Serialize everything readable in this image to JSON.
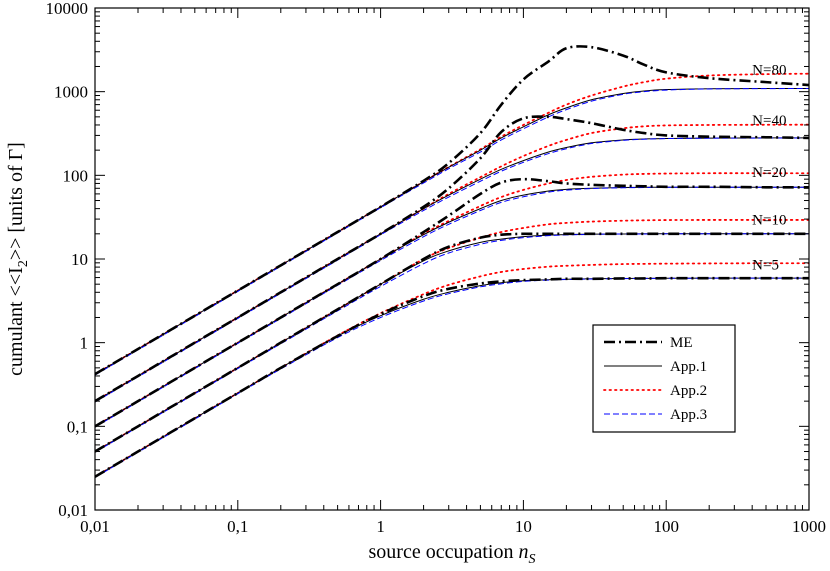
{
  "chart_data": {
    "type": "line",
    "x_scale": "log",
    "y_scale": "log",
    "xlim": [
      0.01,
      1000
    ],
    "ylim": [
      0.01,
      10000
    ],
    "grid": false,
    "xlabel": "source occupation n_S",
    "xlabel_main": "source occupation ",
    "xlabel_var": "n",
    "xlabel_sub": "S",
    "ylabel": "cumulant <<I_2>> [units of Γ]",
    "ylabel_pre": "cumulant  <<I",
    "ylabel_sub": "2",
    "ylabel_post": ">> [units of Γ]",
    "x_ticks": [
      {
        "value": 0.01,
        "label": "0,01"
      },
      {
        "value": 0.1,
        "label": "0,1"
      },
      {
        "value": 1,
        "label": "1"
      },
      {
        "value": 10,
        "label": "10"
      },
      {
        "value": 100,
        "label": "100"
      },
      {
        "value": 1000,
        "label": "1000"
      }
    ],
    "y_ticks": [
      {
        "value": 0.01,
        "label": "0,01"
      },
      {
        "value": 0.1,
        "label": "0,1"
      },
      {
        "value": 1,
        "label": "1"
      },
      {
        "value": 10,
        "label": "10"
      },
      {
        "value": 100,
        "label": "100"
      },
      {
        "value": 1000,
        "label": "1000"
      },
      {
        "value": 10000,
        "label": "10000"
      }
    ],
    "annotations": [
      {
        "text": "N=80",
        "x": 400,
        "y": 1600
      },
      {
        "text": "N=40",
        "x": 400,
        "y": 400
      },
      {
        "text": "N=20",
        "x": 400,
        "y": 95
      },
      {
        "text": "N=10",
        "x": 400,
        "y": 26
      },
      {
        "text": "N=5",
        "x": 400,
        "y": 7.5
      }
    ],
    "legend": {
      "placement": "lower-right",
      "entries": [
        {
          "label": "ME",
          "style": "dashdot",
          "color": "#000000"
        },
        {
          "label": "App.1",
          "style": "solid",
          "color": "#000000"
        },
        {
          "label": "App.2",
          "style": "dotted",
          "color": "#ff0000"
        },
        {
          "label": "App.3",
          "style": "dashed",
          "color": "#0000ff"
        }
      ]
    },
    "x": [
      0.01,
      0.02,
      0.05,
      0.1,
      0.2,
      0.5,
      1,
      2,
      3,
      5,
      7,
      10,
      15,
      20,
      30,
      50,
      70,
      100,
      200,
      500,
      1000
    ],
    "series": [
      {
        "name": "ME",
        "N": 80,
        "values": [
          0.42,
          0.84,
          2.1,
          4.2,
          8.4,
          21,
          42,
          86,
          140,
          320,
          700,
          1400,
          2300,
          3300,
          3400,
          2700,
          2100,
          1700,
          1450,
          1300,
          1200
        ]
      },
      {
        "name": "App.1",
        "N": 80,
        "values": [
          0.42,
          0.84,
          2.1,
          4.2,
          8.4,
          21,
          42,
          84,
          125,
          200,
          280,
          380,
          530,
          640,
          800,
          950,
          1020,
          1060,
          1085,
          1090,
          1090
        ]
      },
      {
        "name": "App.2",
        "N": 80,
        "values": [
          0.42,
          0.84,
          2.1,
          4.2,
          8.4,
          21,
          42,
          84,
          126,
          205,
          290,
          400,
          560,
          700,
          900,
          1150,
          1300,
          1430,
          1560,
          1620,
          1640
        ]
      },
      {
        "name": "App.3",
        "N": 80,
        "values": [
          0.41,
          0.82,
          2.05,
          4.1,
          8.2,
          20.5,
          41,
          81,
          120,
          190,
          265,
          360,
          500,
          610,
          770,
          930,
          1000,
          1045,
          1078,
          1088,
          1090
        ]
      },
      {
        "name": "ME",
        "N": 40,
        "values": [
          0.2,
          0.4,
          1.0,
          2.0,
          4.0,
          10,
          20,
          42,
          70,
          160,
          330,
          480,
          500,
          470,
          420,
          350,
          320,
          300,
          290,
          285,
          280
        ]
      },
      {
        "name": "App.1",
        "N": 40,
        "values": [
          0.2,
          0.4,
          1.0,
          2.0,
          4.0,
          10,
          20,
          40,
          58,
          90,
          118,
          150,
          190,
          215,
          245,
          265,
          272,
          276,
          278,
          280,
          280
        ]
      },
      {
        "name": "App.2",
        "N": 40,
        "values": [
          0.2,
          0.4,
          1.0,
          2.0,
          4.0,
          10,
          20,
          40,
          60,
          95,
          128,
          170,
          225,
          265,
          320,
          365,
          385,
          395,
          400,
          402,
          403
        ]
      },
      {
        "name": "App.3",
        "N": 40,
        "values": [
          0.195,
          0.39,
          0.975,
          1.95,
          3.9,
          9.7,
          19.5,
          38,
          55,
          85,
          112,
          143,
          182,
          208,
          240,
          262,
          270,
          275,
          278,
          279,
          280
        ]
      },
      {
        "name": "ME",
        "N": 20,
        "values": [
          0.1,
          0.2,
          0.5,
          1.0,
          2.0,
          5.0,
          10,
          21,
          33,
          60,
          82,
          90,
          85,
          80,
          77,
          75,
          74,
          73,
          73,
          72,
          72
        ]
      },
      {
        "name": "App.1",
        "N": 20,
        "values": [
          0.1,
          0.2,
          0.5,
          1.0,
          2.0,
          5.0,
          10,
          19.5,
          27.5,
          40,
          50,
          58,
          65,
          68,
          70,
          71.5,
          72,
          72,
          72,
          72,
          72
        ]
      },
      {
        "name": "App.2",
        "N": 20,
        "values": [
          0.1,
          0.2,
          0.5,
          1.0,
          2.0,
          5.0,
          10,
          20,
          28.5,
          43,
          55,
          67,
          80,
          88,
          96,
          102,
          104,
          105,
          106,
          106,
          106
        ]
      },
      {
        "name": "App.3",
        "N": 20,
        "values": [
          0.098,
          0.196,
          0.49,
          0.98,
          1.95,
          4.85,
          9.6,
          18.5,
          26,
          38,
          47.5,
          55.5,
          63,
          66.5,
          69.5,
          71,
          71.5,
          72,
          72,
          72,
          72
        ]
      },
      {
        "name": "ME",
        "N": 10,
        "values": [
          0.05,
          0.1,
          0.25,
          0.5,
          1.0,
          2.5,
          5.0,
          10,
          14,
          18,
          19.5,
          20,
          20,
          20,
          20,
          20,
          20,
          20,
          20,
          20,
          20
        ]
      },
      {
        "name": "App.1",
        "N": 10,
        "values": [
          0.05,
          0.1,
          0.25,
          0.5,
          1.0,
          2.5,
          5.0,
          9.5,
          12.5,
          15.8,
          17.3,
          18.5,
          19.3,
          19.6,
          19.8,
          19.9,
          20,
          20,
          20,
          20,
          20
        ]
      },
      {
        "name": "App.2",
        "N": 10,
        "values": [
          0.05,
          0.1,
          0.25,
          0.5,
          1.0,
          2.5,
          5.0,
          10,
          13.5,
          18,
          21,
          23.5,
          26,
          27,
          28,
          28.7,
          29,
          29.2,
          29.3,
          29.3,
          29.3
        ]
      },
      {
        "name": "App.3",
        "N": 10,
        "values": [
          0.049,
          0.098,
          0.245,
          0.49,
          0.97,
          2.4,
          4.7,
          8.8,
          11.8,
          15,
          16.7,
          18,
          19,
          19.4,
          19.7,
          19.9,
          19.9,
          20,
          20,
          20,
          20
        ]
      },
      {
        "name": "ME",
        "N": 5,
        "values": [
          0.025,
          0.05,
          0.125,
          0.25,
          0.5,
          1.2,
          2.2,
          3.6,
          4.4,
          5.1,
          5.4,
          5.6,
          5.7,
          5.8,
          5.8,
          5.85,
          5.85,
          5.9,
          5.9,
          5.9,
          5.9
        ]
      },
      {
        "name": "App.1",
        "N": 5,
        "values": [
          0.025,
          0.05,
          0.125,
          0.25,
          0.5,
          1.2,
          2.1,
          3.3,
          4.0,
          4.8,
          5.2,
          5.5,
          5.65,
          5.72,
          5.8,
          5.85,
          5.87,
          5.88,
          5.9,
          5.9,
          5.9
        ]
      },
      {
        "name": "App.2",
        "N": 5,
        "values": [
          0.025,
          0.05,
          0.125,
          0.25,
          0.5,
          1.22,
          2.25,
          3.8,
          4.9,
          6.2,
          7.0,
          7.6,
          8.1,
          8.3,
          8.5,
          8.7,
          8.75,
          8.8,
          8.85,
          8.9,
          8.9
        ]
      },
      {
        "name": "App.3",
        "N": 5,
        "values": [
          0.0245,
          0.049,
          0.122,
          0.245,
          0.485,
          1.15,
          2.0,
          3.15,
          3.85,
          4.65,
          5.05,
          5.4,
          5.6,
          5.68,
          5.77,
          5.83,
          5.86,
          5.88,
          5.9,
          5.9,
          5.9
        ]
      }
    ]
  }
}
